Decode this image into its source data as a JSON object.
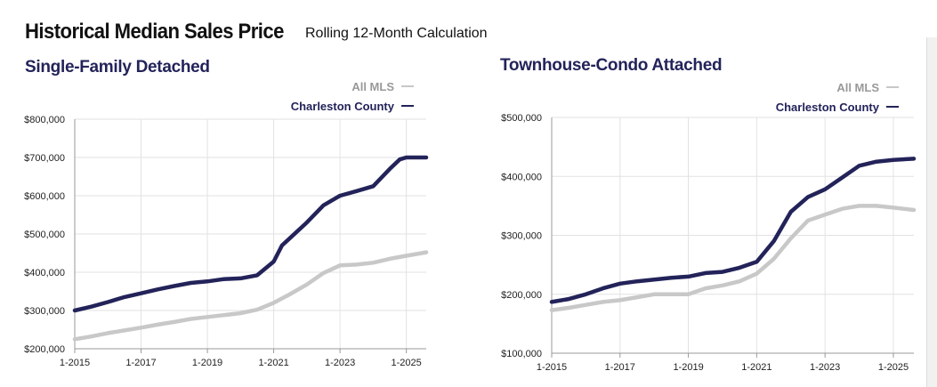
{
  "header": {
    "title": "Historical Median Sales Price",
    "subtitle": "Rolling 12-Month Calculation"
  },
  "colors": {
    "county": "#23235a",
    "mls": "#c8c8c8",
    "grid": "#e2e2e2",
    "axis": "#999999"
  },
  "chart_data": [
    {
      "type": "line",
      "title": "Single-Family Detached",
      "xlabel": "",
      "ylabel": "",
      "x_ticks": [
        "1-2015",
        "1-2017",
        "1-2019",
        "1-2021",
        "1-2023",
        "1-2025"
      ],
      "y_ticks": [
        "$200,000",
        "$300,000",
        "$400,000",
        "$500,000",
        "$600,000",
        "$700,000",
        "$800,000"
      ],
      "ylim": [
        200000,
        800000
      ],
      "xlim": [
        2015.0,
        2025.6
      ],
      "grid": true,
      "legend_position": "top-right",
      "series": [
        {
          "name": "All MLS",
          "color": "#c8c8c8",
          "points": [
            [
              2015.0,
              225000
            ],
            [
              2015.5,
              232000
            ],
            [
              2016.0,
              241000
            ],
            [
              2016.5,
              248000
            ],
            [
              2017.0,
              255000
            ],
            [
              2017.5,
              263000
            ],
            [
              2018.0,
              270000
            ],
            [
              2018.5,
              278000
            ],
            [
              2019.0,
              283000
            ],
            [
              2019.5,
              288000
            ],
            [
              2020.0,
              293000
            ],
            [
              2020.5,
              302000
            ],
            [
              2021.0,
              320000
            ],
            [
              2021.5,
              343000
            ],
            [
              2022.0,
              368000
            ],
            [
              2022.5,
              398000
            ],
            [
              2023.0,
              418000
            ],
            [
              2023.5,
              420000
            ],
            [
              2024.0,
              425000
            ],
            [
              2024.5,
              435000
            ],
            [
              2025.0,
              443000
            ],
            [
              2025.6,
              452000
            ]
          ]
        },
        {
          "name": "Charleston County",
          "color": "#23235a",
          "points": [
            [
              2015.0,
              300000
            ],
            [
              2015.5,
              310000
            ],
            [
              2016.0,
              322000
            ],
            [
              2016.5,
              335000
            ],
            [
              2017.0,
              345000
            ],
            [
              2017.5,
              355000
            ],
            [
              2018.0,
              364000
            ],
            [
              2018.5,
              372000
            ],
            [
              2019.0,
              376000
            ],
            [
              2019.5,
              382000
            ],
            [
              2020.0,
              384000
            ],
            [
              2020.5,
              392000
            ],
            [
              2021.0,
              428000
            ],
            [
              2021.25,
              470000
            ],
            [
              2021.5,
              490000
            ],
            [
              2022.0,
              530000
            ],
            [
              2022.5,
              575000
            ],
            [
              2023.0,
              600000
            ],
            [
              2023.5,
              612000
            ],
            [
              2024.0,
              625000
            ],
            [
              2024.5,
              670000
            ],
            [
              2024.8,
              695000
            ],
            [
              2025.0,
              700000
            ],
            [
              2025.6,
              700000
            ]
          ]
        }
      ]
    },
    {
      "type": "line",
      "title": "Townhouse-Condo Attached",
      "xlabel": "",
      "ylabel": "",
      "x_ticks": [
        "1-2015",
        "1-2017",
        "1-2019",
        "1-2021",
        "1-2023",
        "1-2025"
      ],
      "y_ticks": [
        "$100,000",
        "$200,000",
        "$300,000",
        "$400,000",
        "$500,000"
      ],
      "ylim": [
        100000,
        500000
      ],
      "xlim": [
        2015.0,
        2025.6
      ],
      "grid": true,
      "legend_position": "top-right",
      "series": [
        {
          "name": "All MLS",
          "color": "#c8c8c8",
          "points": [
            [
              2015.0,
              173000
            ],
            [
              2015.5,
              177000
            ],
            [
              2016.0,
              182000
            ],
            [
              2016.5,
              187000
            ],
            [
              2017.0,
              190000
            ],
            [
              2017.5,
              195000
            ],
            [
              2018.0,
              200000
            ],
            [
              2018.5,
              200000
            ],
            [
              2019.0,
              200000
            ],
            [
              2019.5,
              210000
            ],
            [
              2020.0,
              215000
            ],
            [
              2020.5,
              222000
            ],
            [
              2021.0,
              235000
            ],
            [
              2021.5,
              260000
            ],
            [
              2022.0,
              295000
            ],
            [
              2022.5,
              325000
            ],
            [
              2023.0,
              335000
            ],
            [
              2023.5,
              345000
            ],
            [
              2024.0,
              350000
            ],
            [
              2024.5,
              350000
            ],
            [
              2025.0,
              347000
            ],
            [
              2025.6,
              343000
            ]
          ]
        },
        {
          "name": "Charleston County",
          "color": "#23235a",
          "points": [
            [
              2015.0,
              187000
            ],
            [
              2015.5,
              192000
            ],
            [
              2016.0,
              200000
            ],
            [
              2016.5,
              210000
            ],
            [
              2017.0,
              218000
            ],
            [
              2017.5,
              222000
            ],
            [
              2018.0,
              225000
            ],
            [
              2018.5,
              228000
            ],
            [
              2019.0,
              230000
            ],
            [
              2019.5,
              236000
            ],
            [
              2020.0,
              238000
            ],
            [
              2020.5,
              245000
            ],
            [
              2021.0,
              255000
            ],
            [
              2021.5,
              290000
            ],
            [
              2022.0,
              340000
            ],
            [
              2022.5,
              365000
            ],
            [
              2023.0,
              378000
            ],
            [
              2023.5,
              398000
            ],
            [
              2024.0,
              418000
            ],
            [
              2024.5,
              425000
            ],
            [
              2025.0,
              428000
            ],
            [
              2025.6,
              430000
            ]
          ]
        }
      ]
    }
  ]
}
